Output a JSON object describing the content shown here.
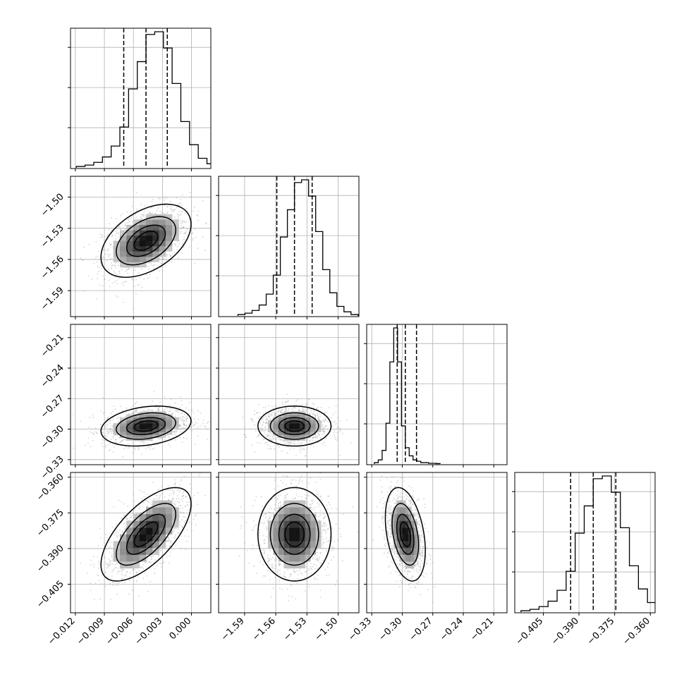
{
  "chart_data": {
    "type": "corner",
    "grid": true,
    "parameters": [
      {
        "ticks": [
          -0.012,
          -0.009,
          -0.006,
          -0.003,
          0.0
        ],
        "tick_labels": [
          "−0.012",
          "−0.009",
          "−0.006",
          "−0.003",
          "0.000"
        ],
        "range": [
          -0.0125,
          0.002
        ],
        "quantiles": [
          -0.007,
          -0.0047,
          -0.0025
        ],
        "histogram": [
          1,
          2,
          4,
          8,
          16,
          30,
          58,
          78,
          98,
          100,
          88,
          62,
          34,
          17,
          7,
          3,
          1
        ]
      },
      {
        "ticks": [
          -1.59,
          -1.56,
          -1.53,
          -1.5
        ],
        "tick_labels": [
          "−1.59",
          "−1.56",
          "−1.53",
          "−1.50"
        ],
        "range": [
          -1.615,
          -1.48
        ],
        "quantiles": [
          -1.559,
          -1.542,
          -1.525
        ],
        "histogram": [
          1,
          2,
          4,
          8,
          16,
          30,
          58,
          78,
          98,
          100,
          88,
          62,
          34,
          17,
          7,
          3,
          1
        ]
      },
      {
        "ticks": [
          -0.33,
          -0.3,
          -0.27,
          -0.24,
          -0.21
        ],
        "tick_labels": [
          "−0.33",
          "−0.30",
          "−0.27",
          "−0.24",
          "−0.21"
        ],
        "range": [
          -0.335,
          -0.197
        ],
        "quantiles": [
          -0.305,
          -0.297,
          -0.286
        ],
        "histogram": [
          1,
          3,
          10,
          30,
          75,
          100,
          75,
          28,
          12,
          6,
          3,
          2,
          1,
          1,
          0.5,
          0.5,
          0.3
        ]
      },
      {
        "ticks": [
          -0.405,
          -0.39,
          -0.375,
          -0.36
        ],
        "tick_labels": [
          "−0.405",
          "−0.390",
          "−0.375",
          "−0.360"
        ],
        "range": [
          -0.417,
          -0.358
        ],
        "quantiles": [
          -0.3935,
          -0.384,
          -0.3745
        ],
        "histogram": [
          1,
          2,
          4,
          8,
          16,
          30,
          58,
          78,
          98,
          100,
          88,
          62,
          34,
          17,
          7,
          3,
          1
        ]
      }
    ],
    "correlations": {
      "1-0": 0.45,
      "2-0": 0.25,
      "2-1": 0.0,
      "3-0": 0.65,
      "3-1": 0.0,
      "3-2": -0.35
    },
    "contour_levels_sigma": [
      0.5,
      1.0,
      1.5,
      2.0
    ],
    "line_color": "#000000",
    "grid_color": "#b0b0b0",
    "scatter_color": "#9a9a9a"
  }
}
